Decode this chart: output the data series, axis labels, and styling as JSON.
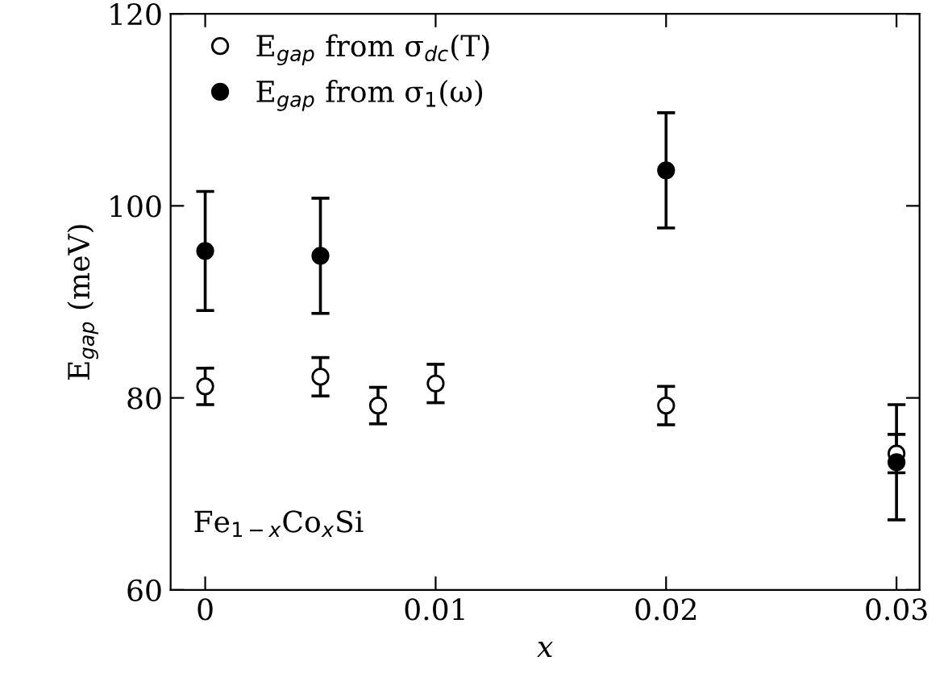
{
  "chart_data": {
    "type": "scatter",
    "xlabel": "x",
    "ylabel": "E$_{gap}$ (meV)",
    "xlim": [
      -0.0015,
      0.031
    ],
    "xticks": [
      0,
      0.01,
      0.02,
      0.03
    ],
    "ylim": [
      60,
      120
    ],
    "yticks": [
      60,
      80,
      100,
      120
    ],
    "grid": false,
    "legend": "top left",
    "marker": "circle",
    "annotations": [
      {
        "text": "Fe$_{1−x}$Co$_{x}$Si"
      }
    ],
    "series": [
      {
        "name": "E$_{gap}$ from σ$_{dc}$(T)",
        "color": "#ffffff",
        "x": [
          0,
          0.005,
          0.0075,
          0.01,
          0.02,
          0.03
        ],
        "values": [
          81.2,
          82.2,
          79.2,
          81.5,
          79.2,
          74.2
        ],
        "errors": [
          1.9,
          2,
          1.9,
          2,
          2,
          2
        ]
      },
      {
        "name": "E$_{gap}$ from σ$_{1}$(ω)",
        "color": "#000000",
        "x": [
          0,
          0.005,
          0.02,
          0.03
        ],
        "values": [
          95.3,
          94.8,
          103.7,
          73.3
        ],
        "errors": [
          6.2,
          6,
          6,
          6
        ]
      }
    ]
  }
}
